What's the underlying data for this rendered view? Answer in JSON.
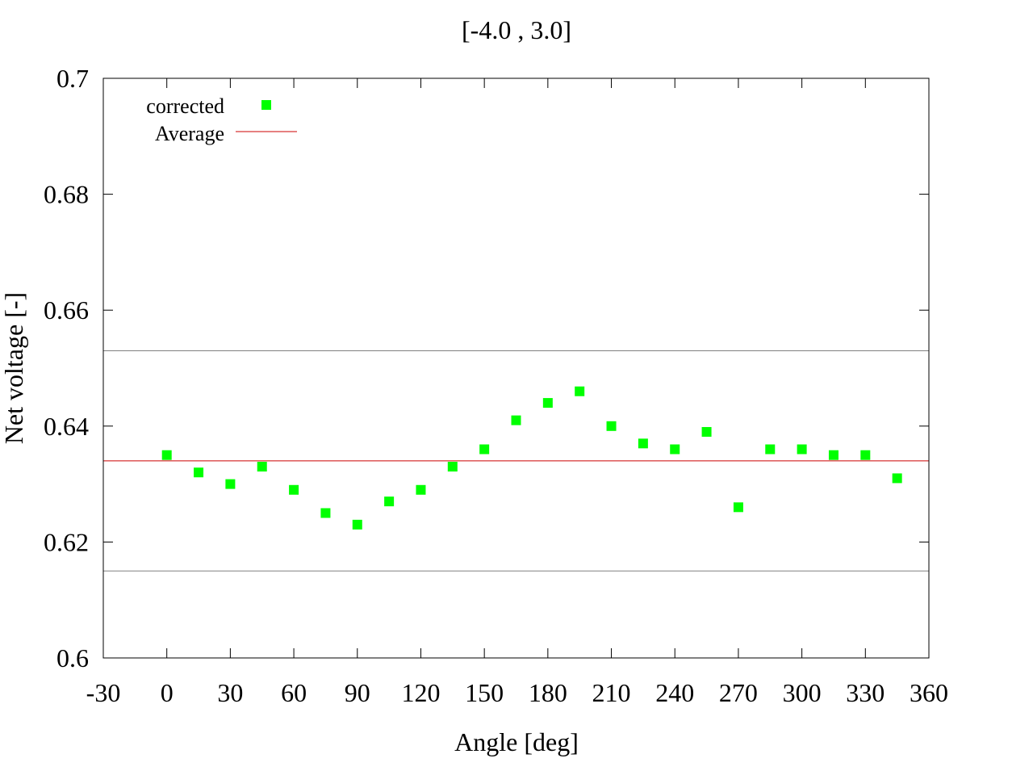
{
  "chart_data": {
    "type": "scatter",
    "title": "[-4.0 , 3.0]",
    "xlabel": "Angle [deg]",
    "ylabel": "Net voltage [-]",
    "xlim": [
      -30,
      360
    ],
    "ylim": [
      0.6,
      0.7
    ],
    "xticks": [
      -30,
      0,
      30,
      60,
      90,
      120,
      150,
      180,
      210,
      240,
      270,
      300,
      330,
      360
    ],
    "yticks": [
      0.6,
      0.62,
      0.64,
      0.66,
      0.68,
      0.7
    ],
    "xtick_labels": [
      "-30",
      "0",
      "30",
      "60",
      "90",
      "120",
      "150",
      "180",
      "210",
      "240",
      "270",
      "300",
      "330",
      "360"
    ],
    "ytick_labels": [
      "0.6",
      "0.62",
      "0.64",
      "0.66",
      "0.68",
      "0.7"
    ],
    "grid": false,
    "legend_position": "top-left",
    "series": [
      {
        "name": "corrected",
        "type": "scatter",
        "color": "#00ff00",
        "marker": "square",
        "x": [
          0,
          15,
          30,
          45,
          60,
          75,
          90,
          105,
          120,
          135,
          150,
          165,
          180,
          195,
          210,
          225,
          240,
          255,
          270,
          285,
          300,
          315,
          330,
          345
        ],
        "y": [
          0.635,
          0.632,
          0.63,
          0.633,
          0.629,
          0.625,
          0.623,
          0.627,
          0.629,
          0.633,
          0.636,
          0.641,
          0.644,
          0.646,
          0.64,
          0.637,
          0.636,
          0.639,
          0.626,
          0.636,
          0.636,
          0.635,
          0.635,
          0.631
        ]
      },
      {
        "name": "Average",
        "type": "hline",
        "color": "#cc0000",
        "y": 0.634
      }
    ],
    "reference_lines": [
      {
        "y": 0.653,
        "color": "#808080"
      },
      {
        "y": 0.615,
        "color": "#808080"
      }
    ]
  }
}
